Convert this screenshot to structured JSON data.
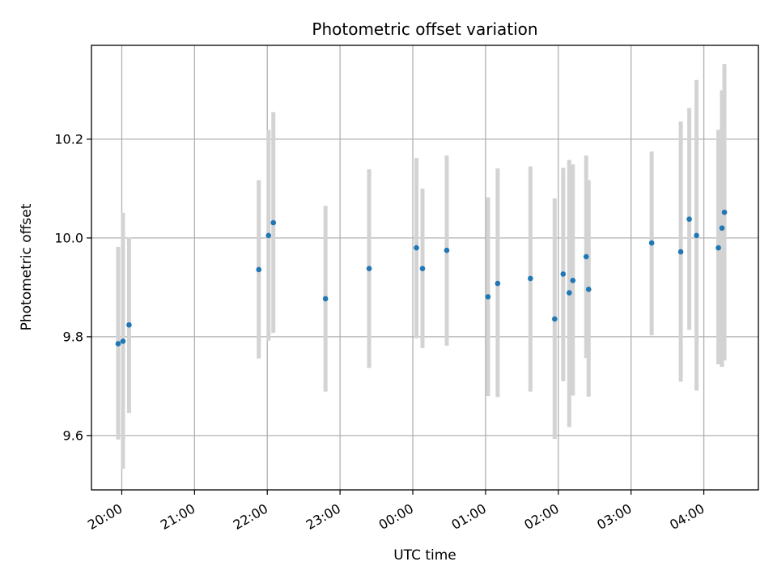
{
  "chart_data": {
    "type": "scatter",
    "title": "Photometric offset variation",
    "xlabel": "UTC time",
    "ylabel": "Photometric offset",
    "x_ticks": [
      "20:00",
      "21:00",
      "22:00",
      "23:00",
      "00:00",
      "01:00",
      "02:00",
      "03:00",
      "04:00"
    ],
    "y_ticks": [
      "9.6",
      "9.8",
      "10.0",
      "10.2"
    ],
    "y_tick_values": [
      9.6,
      9.8,
      10.0,
      10.2
    ],
    "xlim": [
      "19:35",
      "04:45"
    ],
    "ylim": [
      9.49,
      10.39
    ],
    "grid": true,
    "point_color": "#1f77b4",
    "errorbar_color": "#d3d3d3",
    "points": [
      {
        "time": "19:57",
        "y": 9.786,
        "ylow": 9.592,
        "yhigh": 9.982
      },
      {
        "time": "20:01",
        "y": 9.791,
        "ylow": 9.533,
        "yhigh": 10.051
      },
      {
        "time": "20:06",
        "y": 9.824,
        "ylow": 9.646,
        "yhigh": 10.001
      },
      {
        "time": "21:53",
        "y": 9.936,
        "ylow": 9.756,
        "yhigh": 10.117
      },
      {
        "time": "22:01",
        "y": 10.005,
        "ylow": 9.792,
        "yhigh": 10.219
      },
      {
        "time": "22:05",
        "y": 10.031,
        "ylow": 9.808,
        "yhigh": 10.255
      },
      {
        "time": "22:48",
        "y": 9.877,
        "ylow": 9.689,
        "yhigh": 10.065
      },
      {
        "time": "23:24",
        "y": 9.938,
        "ylow": 9.737,
        "yhigh": 10.139
      },
      {
        "time": "00:03",
        "y": 9.98,
        "ylow": 9.797,
        "yhigh": 10.162
      },
      {
        "time": "00:08",
        "y": 9.938,
        "ylow": 9.777,
        "yhigh": 10.1
      },
      {
        "time": "00:28",
        "y": 9.975,
        "ylow": 9.782,
        "yhigh": 10.167
      },
      {
        "time": "01:02",
        "y": 9.881,
        "ylow": 9.68,
        "yhigh": 10.082
      },
      {
        "time": "01:10",
        "y": 9.908,
        "ylow": 9.678,
        "yhigh": 10.141
      },
      {
        "time": "01:37",
        "y": 9.918,
        "ylow": 9.689,
        "yhigh": 10.145
      },
      {
        "time": "01:57",
        "y": 9.836,
        "ylow": 9.593,
        "yhigh": 10.08
      },
      {
        "time": "02:04",
        "y": 9.927,
        "ylow": 9.71,
        "yhigh": 10.142
      },
      {
        "time": "02:09",
        "y": 9.889,
        "ylow": 9.617,
        "yhigh": 10.158
      },
      {
        "time": "02:12",
        "y": 9.914,
        "ylow": 9.681,
        "yhigh": 10.149
      },
      {
        "time": "02:23",
        "y": 9.962,
        "ylow": 9.757,
        "yhigh": 10.167
      },
      {
        "time": "02:25",
        "y": 9.896,
        "ylow": 9.679,
        "yhigh": 10.117
      },
      {
        "time": "03:17",
        "y": 9.99,
        "ylow": 9.803,
        "yhigh": 10.175
      },
      {
        "time": "03:41",
        "y": 9.972,
        "ylow": 9.709,
        "yhigh": 10.236
      },
      {
        "time": "03:48",
        "y": 10.038,
        "ylow": 9.814,
        "yhigh": 10.263
      },
      {
        "time": "03:54",
        "y": 10.005,
        "ylow": 9.691,
        "yhigh": 10.32
      },
      {
        "time": "04:12",
        "y": 9.98,
        "ylow": 9.744,
        "yhigh": 10.219
      },
      {
        "time": "04:15",
        "y": 10.02,
        "ylow": 9.739,
        "yhigh": 10.299
      },
      {
        "time": "04:17",
        "y": 10.052,
        "ylow": 9.752,
        "yhigh": 10.352
      }
    ]
  }
}
